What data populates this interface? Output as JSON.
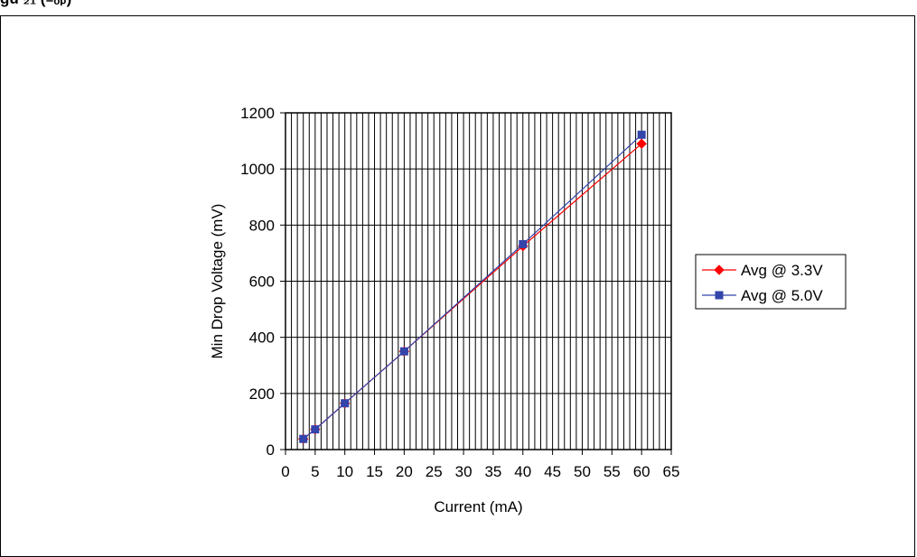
{
  "caption": "gu            ₂₁                    (₋ₒₚ)",
  "chart_data": {
    "type": "line",
    "title": "",
    "xlabel": "Current (mA)",
    "ylabel": "Min Drop Voltage (mV)",
    "xlim": [
      0,
      65
    ],
    "ylim": [
      0,
      1200
    ],
    "x_ticks": [
      "0",
      "5",
      "10",
      "15",
      "20",
      "25",
      "30",
      "35",
      "40",
      "45",
      "50",
      "55",
      "60",
      "65"
    ],
    "y_ticks": [
      "0",
      "200",
      "400",
      "600",
      "800",
      "1000",
      "1200"
    ],
    "grid": true,
    "legend_position": "right",
    "series": [
      {
        "name": "Avg @ 3.3V",
        "color": "#ff0000",
        "marker": "diamond",
        "x": [
          3,
          5,
          10,
          20,
          40,
          60
        ],
        "y": [
          38,
          72,
          165,
          350,
          725,
          1090
        ]
      },
      {
        "name": "Avg @ 5.0V",
        "color": "#3344aa",
        "marker": "square",
        "x": [
          3,
          5,
          10,
          20,
          40,
          60
        ],
        "y": [
          38,
          72,
          165,
          350,
          732,
          1122
        ]
      }
    ]
  }
}
